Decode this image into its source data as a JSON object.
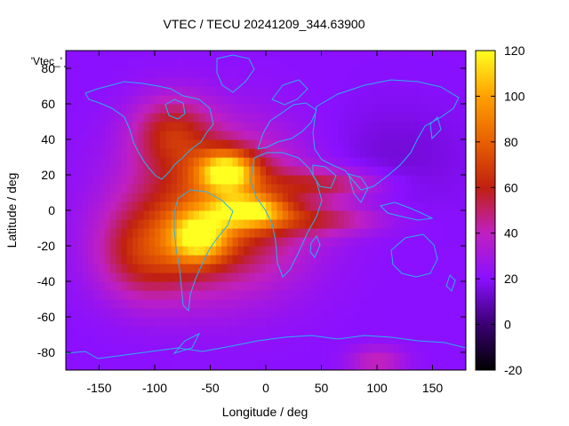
{
  "chart_data": {
    "type": "heatmap",
    "title": "VTEC / TECU 20241209_344.63900",
    "xlabel": "Longitude / deg",
    "ylabel": "Latitude / deg",
    "key_label": "'Vtec_'",
    "xlim": [
      -180,
      180
    ],
    "ylim": [
      -90,
      90
    ],
    "x_ticks": [
      -150,
      -100,
      -50,
      0,
      50,
      100,
      150
    ],
    "y_ticks": [
      -80,
      -60,
      -40,
      -20,
      0,
      20,
      40,
      60,
      80
    ],
    "colorbar": {
      "range": [
        -20,
        120
      ],
      "ticks": [
        -20,
        0,
        20,
        40,
        60,
        80,
        100,
        120
      ]
    },
    "background_level": 20,
    "features": [
      {
        "name": "americas-atlantic-equatorial-peak",
        "lon": -45,
        "lat": 0,
        "value": 76,
        "sigma_lon": 55,
        "sigma_lat": 30
      },
      {
        "name": "north-atlantic-crest",
        "lon": -35,
        "lat": 22,
        "value": 92,
        "sigma_lon": 18,
        "sigma_lat": 8
      },
      {
        "name": "central-atlantic-crest",
        "lon": -15,
        "lat": 0,
        "value": 82,
        "sigma_lon": 22,
        "sigma_lat": 6
      },
      {
        "name": "south-american-crest",
        "lon": -60,
        "lat": -15,
        "value": 80,
        "sigma_lon": 18,
        "sigma_lat": 10
      },
      {
        "name": "north-american-extension",
        "lon": -85,
        "lat": 45,
        "value": 52,
        "sigma_lon": 25,
        "sigma_lat": 14
      },
      {
        "name": "southeast-pacific-extension",
        "lon": -110,
        "lat": -25,
        "value": 52,
        "sigma_lon": 30,
        "sigma_lat": 18
      },
      {
        "name": "africa-indian-band-north",
        "lon": 55,
        "lat": 15,
        "value": 48,
        "sigma_lon": 35,
        "sigma_lat": 6
      },
      {
        "name": "africa-indian-band-south",
        "lon": 50,
        "lat": -5,
        "value": 46,
        "sigma_lon": 40,
        "sigma_lat": 6
      },
      {
        "name": "southern-ocean-patch",
        "lon": 100,
        "lat": -85,
        "value": 42,
        "sigma_lon": 18,
        "sigma_lat": 6
      },
      {
        "name": "asia-low",
        "lon": 110,
        "lat": 30,
        "value": 14,
        "sigma_lon": 50,
        "sigma_lat": 20
      }
    ]
  }
}
